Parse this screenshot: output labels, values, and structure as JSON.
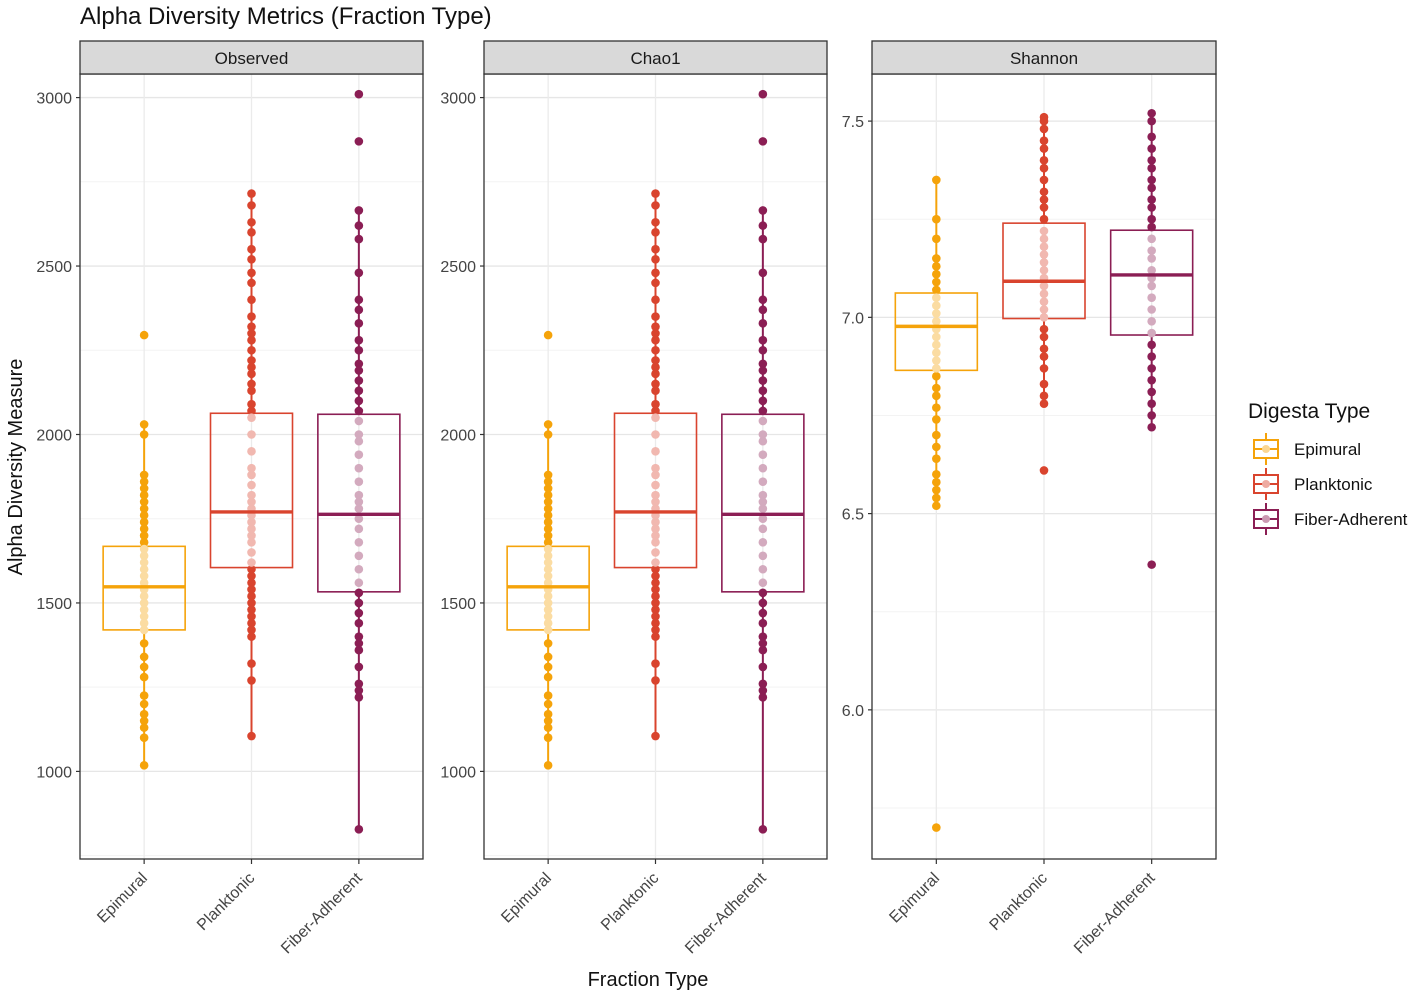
{
  "chart_data": {
    "type": "box",
    "title": "Alpha Diversity Metrics (Fraction Type)",
    "xlabel": "Fraction Type",
    "ylabel": "Alpha Diversity Measure",
    "categories": [
      "Epimural",
      "Planktonic",
      "Fiber-Adherent"
    ],
    "colors": {
      "Epimural": "#F5A30A",
      "Planktonic": "#D9442E",
      "Fiber-Adherent": "#8B1E54"
    },
    "legend": {
      "title": "Digesta Type",
      "placement": "right",
      "entries": [
        "Epimural",
        "Planktonic",
        "Fiber-Adherent"
      ]
    },
    "panels": [
      {
        "name": "Observed",
        "ylim": [
          740,
          3070
        ],
        "yticks": [
          1000,
          1500,
          2000,
          2500,
          3000
        ],
        "yticklabels": [
          "1000",
          "1500",
          "2000",
          "2500",
          "3000"
        ],
        "boxes": [
          {
            "category": "Epimural",
            "q1": 1420,
            "median": 1548,
            "q3": 1668,
            "whisker_low": 1018,
            "whisker_high": 2030,
            "points": [
              1018,
              1100,
              1130,
              1150,
              1170,
              1200,
              1225,
              1280,
              1310,
              1340,
              1380,
              1420,
              1440,
              1460,
              1480,
              1500,
              1520,
              1540,
              1560,
              1580,
              1600,
              1620,
              1640,
              1660,
              1680,
              1700,
              1720,
              1740,
              1760,
              1780,
              1800,
              1820,
              1840,
              1860,
              1880,
              2000,
              2030,
              2295
            ]
          },
          {
            "category": "Planktonic",
            "q1": 1605,
            "median": 1770,
            "q3": 2063,
            "whisker_low": 1105,
            "whisker_high": 2715,
            "points": [
              1105,
              1270,
              1320,
              1400,
              1420,
              1440,
              1460,
              1480,
              1500,
              1520,
              1540,
              1560,
              1580,
              1600,
              1620,
              1650,
              1680,
              1700,
              1720,
              1740,
              1760,
              1780,
              1800,
              1820,
              1850,
              1880,
              1900,
              1950,
              2000,
              2050,
              2070,
              2090,
              2130,
              2150,
              2180,
              2200,
              2220,
              2250,
              2280,
              2300,
              2320,
              2350,
              2400,
              2450,
              2480,
              2520,
              2550,
              2600,
              2630,
              2680,
              2715
            ]
          },
          {
            "category": "Fiber-Adherent",
            "q1": 1533,
            "median": 1763,
            "q3": 2060,
            "whisker_low": 828,
            "whisker_high": 2665,
            "points": [
              828,
              1220,
              1240,
              1260,
              1310,
              1360,
              1380,
              1400,
              1440,
              1470,
              1500,
              1530,
              1560,
              1600,
              1640,
              1680,
              1720,
              1750,
              1780,
              1800,
              1820,
              1860,
              1900,
              1940,
              1980,
              2000,
              2040,
              2070,
              2100,
              2130,
              2160,
              2190,
              2210,
              2250,
              2280,
              2330,
              2370,
              2400,
              2480,
              2580,
              2620,
              2665,
              2870,
              3010
            ]
          }
        ]
      },
      {
        "name": "Chao1",
        "ylim": [
          740,
          3070
        ],
        "yticks": [
          1000,
          1500,
          2000,
          2500,
          3000
        ],
        "yticklabels": [
          "1000",
          "1500",
          "2000",
          "2500",
          "3000"
        ],
        "boxes": [
          {
            "category": "Epimural",
            "q1": 1420,
            "median": 1548,
            "q3": 1668,
            "whisker_low": 1018,
            "whisker_high": 2030,
            "points": [
              1018,
              1100,
              1130,
              1150,
              1170,
              1200,
              1225,
              1280,
              1310,
              1340,
              1380,
              1420,
              1440,
              1460,
              1480,
              1500,
              1520,
              1540,
              1560,
              1580,
              1600,
              1620,
              1640,
              1660,
              1680,
              1700,
              1720,
              1740,
              1760,
              1780,
              1800,
              1820,
              1840,
              1860,
              1880,
              2000,
              2030,
              2295
            ]
          },
          {
            "category": "Planktonic",
            "q1": 1605,
            "median": 1770,
            "q3": 2063,
            "whisker_low": 1105,
            "whisker_high": 2715,
            "points": [
              1105,
              1270,
              1320,
              1400,
              1420,
              1440,
              1460,
              1480,
              1500,
              1520,
              1540,
              1560,
              1580,
              1600,
              1620,
              1650,
              1680,
              1700,
              1720,
              1740,
              1760,
              1780,
              1800,
              1820,
              1850,
              1880,
              1900,
              1950,
              2000,
              2050,
              2070,
              2090,
              2130,
              2150,
              2180,
              2200,
              2220,
              2250,
              2280,
              2300,
              2320,
              2350,
              2400,
              2450,
              2480,
              2520,
              2550,
              2600,
              2630,
              2680,
              2715
            ]
          },
          {
            "category": "Fiber-Adherent",
            "q1": 1533,
            "median": 1763,
            "q3": 2060,
            "whisker_low": 828,
            "whisker_high": 2665,
            "points": [
              828,
              1220,
              1240,
              1260,
              1310,
              1360,
              1380,
              1400,
              1440,
              1470,
              1500,
              1530,
              1560,
              1600,
              1640,
              1680,
              1720,
              1750,
              1780,
              1800,
              1820,
              1860,
              1900,
              1940,
              1980,
              2000,
              2040,
              2070,
              2100,
              2130,
              2160,
              2190,
              2210,
              2250,
              2280,
              2330,
              2370,
              2400,
              2480,
              2580,
              2620,
              2665,
              2870,
              3010
            ]
          }
        ]
      },
      {
        "name": "Shannon",
        "ylim": [
          5.62,
          7.62
        ],
        "yticks": [
          6.0,
          6.5,
          7.0,
          7.5
        ],
        "yticklabels": [
          "6.0",
          "6.5",
          "7.0",
          "7.5"
        ],
        "boxes": [
          {
            "category": "Epimural",
            "q1": 6.865,
            "median": 6.977,
            "q3": 7.062,
            "whisker_low": 6.52,
            "whisker_high": 7.35,
            "points": [
              5.7,
              6.52,
              6.54,
              6.56,
              6.58,
              6.6,
              6.64,
              6.67,
              6.7,
              6.74,
              6.77,
              6.8,
              6.82,
              6.85,
              6.87,
              6.89,
              6.91,
              6.93,
              6.95,
              6.97,
              6.99,
              7.01,
              7.03,
              7.05,
              7.07,
              7.09,
              7.11,
              7.13,
              7.15,
              7.2,
              7.25,
              7.35
            ]
          },
          {
            "category": "Planktonic",
            "q1": 6.997,
            "median": 7.092,
            "q3": 7.24,
            "whisker_low": 6.78,
            "whisker_high": 7.51,
            "points": [
              6.61,
              6.78,
              6.8,
              6.83,
              6.87,
              6.9,
              6.92,
              6.95,
              6.97,
              7.0,
              7.02,
              7.04,
              7.06,
              7.08,
              7.1,
              7.12,
              7.14,
              7.16,
              7.18,
              7.2,
              7.22,
              7.25,
              7.28,
              7.3,
              7.32,
              7.35,
              7.38,
              7.4,
              7.43,
              7.45,
              7.48,
              7.5,
              7.51
            ]
          },
          {
            "category": "Fiber-Adherent",
            "q1": 6.955,
            "median": 7.108,
            "q3": 7.222,
            "whisker_low": 6.72,
            "whisker_high": 7.52,
            "points": [
              6.37,
              6.72,
              6.75,
              6.78,
              6.81,
              6.84,
              6.87,
              6.9,
              6.93,
              6.96,
              6.99,
              7.02,
              7.05,
              7.08,
              7.1,
              7.12,
              7.15,
              7.17,
              7.2,
              7.23,
              7.25,
              7.28,
              7.3,
              7.33,
              7.35,
              7.38,
              7.4,
              7.43,
              7.46,
              7.5,
              7.52
            ]
          }
        ]
      }
    ]
  }
}
